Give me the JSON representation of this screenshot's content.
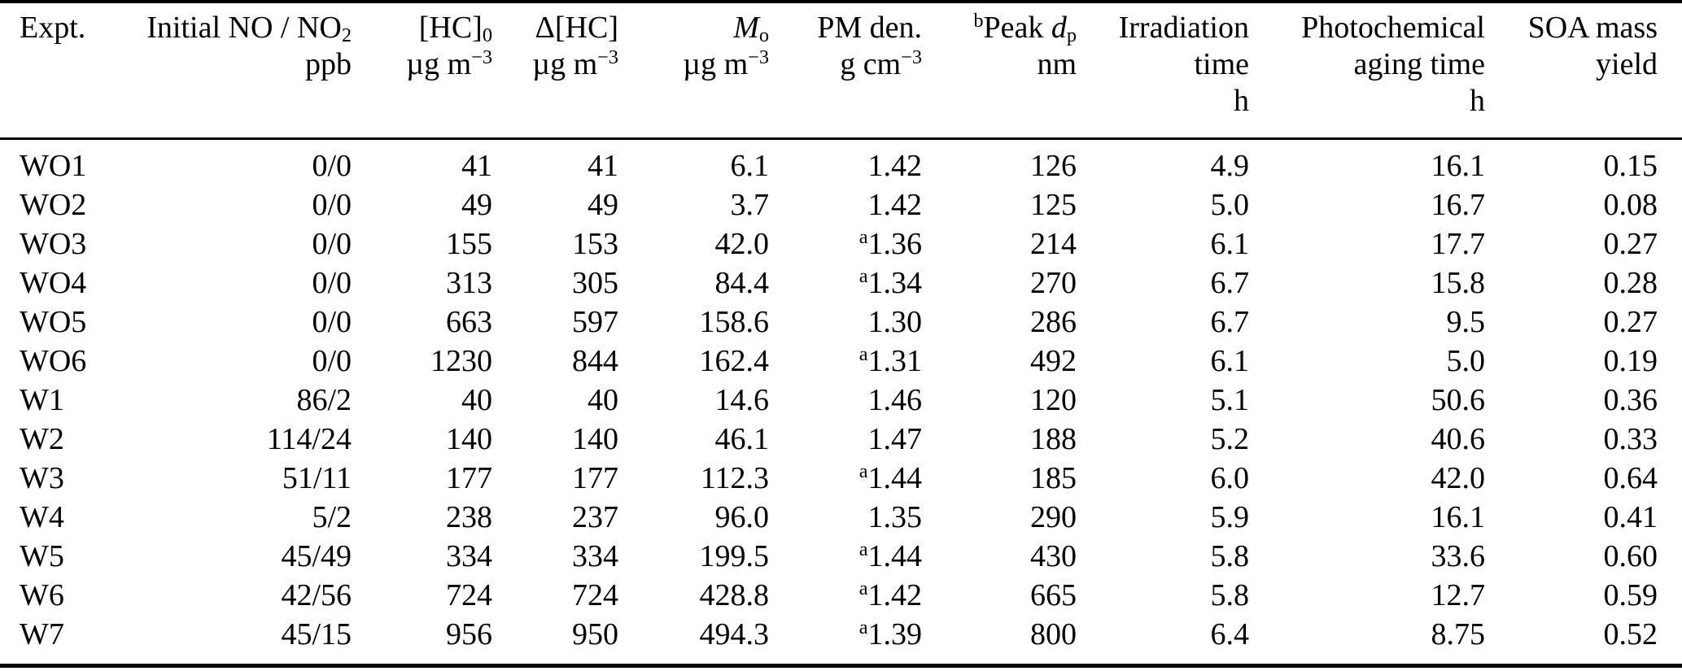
{
  "colors": {
    "background": "#ffffff",
    "text": "#000000",
    "rule": "#000000"
  },
  "table": {
    "name": "soa-experiment-conditions-table",
    "columns": [
      {
        "id": "expt",
        "align": "left",
        "header_lines": [
          "Expt."
        ]
      },
      {
        "id": "initial-no-no2",
        "align": "right",
        "header_lines": [
          "Initial NO / NO_{2}",
          "ppb"
        ]
      },
      {
        "id": "hc-initial",
        "align": "right",
        "header_lines": [
          "[HC]_{0}",
          "µg m^{−3}"
        ]
      },
      {
        "id": "delta-hc",
        "align": "right",
        "header_lines": [
          "Δ[HC]",
          "µg m^{−3}"
        ]
      },
      {
        "id": "m-organic",
        "align": "right",
        "header_lines": [
          "*M*_{o}",
          "µg m^{−3}"
        ]
      },
      {
        "id": "pm-density",
        "align": "right",
        "header_lines": [
          "PM den.",
          "g cm^{−3}"
        ]
      },
      {
        "id": "peak-dp",
        "align": "right",
        "header_lines": [
          "^{b}Peak *d*_{p}",
          "nm"
        ]
      },
      {
        "id": "irradiation-time",
        "align": "right",
        "header_lines": [
          "Irradiation",
          "time",
          "h"
        ]
      },
      {
        "id": "photochemical-aging-time",
        "align": "right",
        "header_lines": [
          "Photochemical",
          "aging time",
          "h"
        ]
      },
      {
        "id": "soa-mass-yield",
        "align": "right",
        "header_lines": [
          "SOA mass",
          "yield"
        ]
      }
    ],
    "rows": [
      [
        "WO1",
        "0/0",
        "41",
        "41",
        "6.1",
        "1.42",
        "126",
        "4.9",
        "16.1",
        "0.15"
      ],
      [
        "WO2",
        "0/0",
        "49",
        "49",
        "3.7",
        "1.42",
        "125",
        "5.0",
        "16.7",
        "0.08"
      ],
      [
        "WO3",
        "0/0",
        "155",
        "153",
        "42.0",
        "^{a}1.36",
        "214",
        "6.1",
        "17.7",
        "0.27"
      ],
      [
        "WO4",
        "0/0",
        "313",
        "305",
        "84.4",
        "^{a}1.34",
        "270",
        "6.7",
        "15.8",
        "0.28"
      ],
      [
        "WO5",
        "0/0",
        "663",
        "597",
        "158.6",
        "1.30",
        "286",
        "6.7",
        "9.5",
        "0.27"
      ],
      [
        "WO6",
        "0/0",
        "1230",
        "844",
        "162.4",
        "^{a}1.31",
        "492",
        "6.1",
        "5.0",
        "0.19"
      ],
      [
        "W1",
        "86/2",
        "40",
        "40",
        "14.6",
        "1.46",
        "120",
        "5.1",
        "50.6",
        "0.36"
      ],
      [
        "W2",
        "114/24",
        "140",
        "140",
        "46.1",
        "1.47",
        "188",
        "5.2",
        "40.6",
        "0.33"
      ],
      [
        "W3",
        "51/11",
        "177",
        "177",
        "112.3",
        "^{a}1.44",
        "185",
        "6.0",
        "42.0",
        "0.64"
      ],
      [
        "W4",
        "5/2",
        "238",
        "237",
        "96.0",
        "1.35",
        "290",
        "5.9",
        "16.1",
        "0.41"
      ],
      [
        "W5",
        "45/49",
        "334",
        "334",
        "199.5",
        "^{a}1.44",
        "430",
        "5.8",
        "33.6",
        "0.60"
      ],
      [
        "W6",
        "42/56",
        "724",
        "724",
        "428.8",
        "^{a}1.42",
        "665",
        "5.8",
        "12.7",
        "0.59"
      ],
      [
        "W7",
        "45/15",
        "956",
        "950",
        "494.3",
        "^{a}1.39",
        "800",
        "6.4",
        "8.75",
        "0.52"
      ]
    ]
  }
}
